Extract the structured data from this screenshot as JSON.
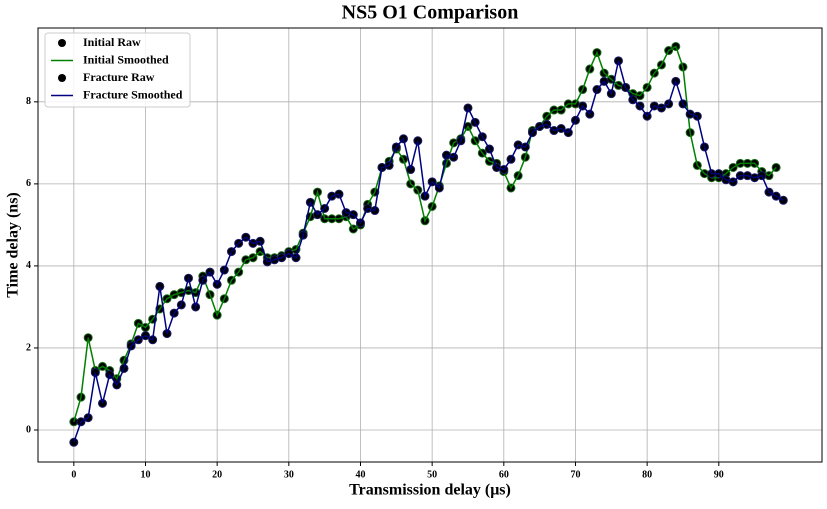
{
  "chart_data": {
    "type": "line",
    "title": "NS5 O1 Comparison",
    "xlabel": "Transmission delay (μs)",
    "ylabel": "Time delay (ns)",
    "xlim": [
      -5,
      104.4
    ],
    "ylim": [
      -0.78,
      9.8
    ],
    "xticks": [
      0,
      10,
      20,
      30,
      40,
      50,
      60,
      70,
      80,
      90
    ],
    "yticks": [
      0,
      2,
      4,
      6,
      8
    ],
    "grid": true,
    "legend": "upper left",
    "series": [
      {
        "name": "Initial Raw",
        "type": "scatter",
        "color": "#000000",
        "edgecolor": "#1a6b1a",
        "x": [
          0,
          1,
          2,
          3,
          4,
          5,
          6,
          7,
          8,
          9,
          10,
          11,
          12,
          13,
          14,
          15,
          16,
          17,
          18,
          19,
          20,
          21,
          22,
          23,
          24,
          25,
          26,
          27,
          28,
          29,
          30,
          31,
          32,
          33,
          34,
          35,
          36,
          37,
          38,
          39,
          40,
          41,
          42,
          43,
          44,
          45,
          46,
          47,
          48,
          49,
          50,
          51,
          52,
          53,
          54,
          55,
          56,
          57,
          58,
          59,
          60,
          61,
          62,
          63,
          64,
          65,
          66,
          67,
          68,
          69,
          70,
          71,
          72,
          73,
          74,
          75,
          76,
          77,
          78,
          79,
          80,
          81,
          82,
          83,
          84,
          85,
          86,
          87,
          88,
          89,
          90,
          91,
          92,
          93,
          94,
          95,
          96,
          97,
          98
        ],
        "values": [
          0.2,
          0.8,
          2.25,
          1.45,
          1.55,
          1.45,
          1.25,
          1.7,
          2.1,
          2.6,
          2.5,
          2.7,
          2.95,
          3.2,
          3.3,
          3.35,
          3.4,
          3.35,
          3.75,
          3.3,
          2.8,
          3.2,
          3.65,
          3.85,
          4.15,
          4.2,
          4.35,
          4.2,
          4.2,
          4.25,
          4.35,
          4.4,
          4.8,
          5.2,
          5.8,
          5.15,
          5.15,
          5.15,
          5.2,
          4.9,
          5.0,
          5.5,
          5.8,
          6.4,
          6.55,
          6.85,
          6.6,
          6.0,
          5.85,
          5.1,
          5.45,
          5.95,
          6.5,
          7.0,
          7.1,
          7.4,
          7.05,
          6.75,
          6.55,
          6.5,
          6.3,
          5.9,
          6.2,
          6.65,
          7.3,
          7.4,
          7.65,
          7.8,
          7.8,
          7.95,
          7.95,
          8.3,
          8.8,
          9.2,
          8.7,
          8.55,
          8.4,
          8.35,
          8.2,
          8.15,
          8.35,
          8.7,
          8.9,
          9.25,
          9.35,
          8.85,
          7.25,
          6.45,
          6.25,
          6.15,
          6.15,
          6.25,
          6.4,
          6.5,
          6.5,
          6.5,
          6.3,
          6.2,
          6.4
        ]
      },
      {
        "name": "Initial Smoothed",
        "type": "line",
        "color": "#008000",
        "x": [
          0,
          1,
          2,
          3,
          4,
          5,
          6,
          7,
          8,
          9,
          10,
          11,
          12,
          13,
          14,
          15,
          16,
          17,
          18,
          19,
          20,
          21,
          22,
          23,
          24,
          25,
          26,
          27,
          28,
          29,
          30,
          31,
          32,
          33,
          34,
          35,
          36,
          37,
          38,
          39,
          40,
          41,
          42,
          43,
          44,
          45,
          46,
          47,
          48,
          49,
          50,
          51,
          52,
          53,
          54,
          55,
          56,
          57,
          58,
          59,
          60,
          61,
          62,
          63,
          64,
          65,
          66,
          67,
          68,
          69,
          70,
          71,
          72,
          73,
          74,
          75,
          76,
          77,
          78,
          79,
          80,
          81,
          82,
          83,
          84,
          85,
          86,
          87,
          88,
          89,
          90,
          91,
          92,
          93,
          94,
          95,
          96,
          97,
          98
        ],
        "values": [
          0.2,
          0.8,
          2.25,
          1.45,
          1.55,
          1.45,
          1.25,
          1.7,
          2.1,
          2.6,
          2.5,
          2.7,
          2.95,
          3.2,
          3.3,
          3.35,
          3.4,
          3.35,
          3.75,
          3.3,
          2.8,
          3.2,
          3.65,
          3.85,
          4.15,
          4.2,
          4.35,
          4.2,
          4.2,
          4.25,
          4.35,
          4.4,
          4.8,
          5.2,
          5.8,
          5.15,
          5.15,
          5.15,
          5.2,
          4.9,
          5.0,
          5.5,
          5.8,
          6.4,
          6.55,
          6.85,
          6.6,
          6.0,
          5.85,
          5.1,
          5.45,
          5.95,
          6.5,
          7.0,
          7.1,
          7.4,
          7.05,
          6.75,
          6.55,
          6.5,
          6.3,
          5.9,
          6.2,
          6.65,
          7.3,
          7.4,
          7.65,
          7.8,
          7.8,
          7.95,
          7.95,
          8.3,
          8.8,
          9.2,
          8.7,
          8.55,
          8.4,
          8.35,
          8.2,
          8.15,
          8.35,
          8.7,
          8.9,
          9.25,
          9.35,
          8.85,
          7.25,
          6.45,
          6.25,
          6.15,
          6.15,
          6.25,
          6.4,
          6.5,
          6.5,
          6.5,
          6.3,
          6.2,
          6.4
        ]
      },
      {
        "name": "Fracture Raw",
        "type": "scatter",
        "color": "#000000",
        "edgecolor": "#1a1a6b",
        "x": [
          0,
          1,
          2,
          3,
          4,
          5,
          6,
          7,
          8,
          9,
          10,
          11,
          12,
          13,
          14,
          15,
          16,
          17,
          18,
          19,
          20,
          21,
          22,
          23,
          24,
          25,
          26,
          27,
          28,
          29,
          30,
          31,
          32,
          33,
          34,
          35,
          36,
          37,
          38,
          39,
          40,
          41,
          42,
          43,
          44,
          45,
          46,
          47,
          48,
          49,
          50,
          51,
          52,
          53,
          54,
          55,
          56,
          57,
          58,
          59,
          60,
          61,
          62,
          63,
          64,
          65,
          66,
          67,
          68,
          69,
          70,
          71,
          72,
          73,
          74,
          75,
          76,
          77,
          78,
          79,
          80,
          81,
          82,
          83,
          84,
          85,
          86,
          87,
          88,
          89,
          90,
          91,
          92,
          93,
          94,
          95,
          96,
          97,
          98,
          99
        ],
        "values": [
          -0.3,
          0.2,
          0.3,
          1.4,
          0.65,
          1.35,
          1.1,
          1.5,
          2.05,
          2.2,
          2.3,
          2.2,
          3.5,
          2.35,
          2.85,
          3.05,
          3.7,
          3.0,
          3.65,
          3.85,
          3.55,
          3.9,
          4.35,
          4.55,
          4.7,
          4.55,
          4.6,
          4.1,
          4.15,
          4.2,
          4.3,
          4.2,
          4.75,
          5.55,
          5.25,
          5.4,
          5.7,
          5.75,
          5.3,
          5.25,
          5.05,
          5.4,
          5.35,
          6.4,
          6.45,
          6.9,
          7.1,
          6.35,
          7.05,
          5.7,
          6.05,
          5.9,
          6.7,
          6.65,
          7.05,
          7.85,
          7.5,
          7.15,
          6.85,
          6.4,
          6.35,
          6.6,
          6.95,
          6.9,
          7.25,
          7.4,
          7.45,
          7.3,
          7.35,
          7.25,
          7.55,
          7.9,
          7.7,
          8.3,
          8.5,
          8.2,
          9.0,
          8.35,
          8.05,
          7.9,
          7.65,
          7.9,
          7.85,
          7.95,
          8.5,
          7.95,
          7.7,
          7.65,
          6.9,
          6.25,
          6.25,
          6.1,
          6.05,
          6.2,
          6.2,
          6.15,
          6.2,
          5.8,
          5.7,
          5.6
        ]
      },
      {
        "name": "Fracture Smoothed",
        "type": "line",
        "color": "#000080",
        "x": [
          0,
          1,
          2,
          3,
          4,
          5,
          6,
          7,
          8,
          9,
          10,
          11,
          12,
          13,
          14,
          15,
          16,
          17,
          18,
          19,
          20,
          21,
          22,
          23,
          24,
          25,
          26,
          27,
          28,
          29,
          30,
          31,
          32,
          33,
          34,
          35,
          36,
          37,
          38,
          39,
          40,
          41,
          42,
          43,
          44,
          45,
          46,
          47,
          48,
          49,
          50,
          51,
          52,
          53,
          54,
          55,
          56,
          57,
          58,
          59,
          60,
          61,
          62,
          63,
          64,
          65,
          66,
          67,
          68,
          69,
          70,
          71,
          72,
          73,
          74,
          75,
          76,
          77,
          78,
          79,
          80,
          81,
          82,
          83,
          84,
          85,
          86,
          87,
          88,
          89,
          90,
          91,
          92,
          93,
          94,
          95,
          96,
          97,
          98,
          99
        ],
        "values": [
          -0.3,
          0.2,
          0.3,
          1.4,
          0.65,
          1.35,
          1.1,
          1.5,
          2.05,
          2.2,
          2.3,
          2.2,
          3.5,
          2.35,
          2.85,
          3.05,
          3.7,
          3.0,
          3.65,
          3.85,
          3.55,
          3.9,
          4.35,
          4.55,
          4.7,
          4.55,
          4.6,
          4.1,
          4.15,
          4.2,
          4.3,
          4.2,
          4.75,
          5.55,
          5.25,
          5.4,
          5.7,
          5.75,
          5.3,
          5.25,
          5.05,
          5.4,
          5.35,
          6.4,
          6.45,
          6.9,
          7.1,
          6.35,
          7.05,
          5.7,
          6.05,
          5.9,
          6.7,
          6.65,
          7.05,
          7.85,
          7.5,
          7.15,
          6.85,
          6.4,
          6.35,
          6.6,
          6.95,
          6.9,
          7.25,
          7.4,
          7.45,
          7.3,
          7.35,
          7.25,
          7.55,
          7.9,
          7.7,
          8.3,
          8.5,
          8.2,
          9.0,
          8.35,
          8.05,
          7.9,
          7.65,
          7.9,
          7.85,
          7.95,
          8.5,
          7.95,
          7.7,
          7.65,
          6.9,
          6.25,
          6.25,
          6.1,
          6.05,
          6.2,
          6.2,
          6.15,
          6.2,
          5.8,
          5.7,
          5.6
        ]
      }
    ]
  }
}
